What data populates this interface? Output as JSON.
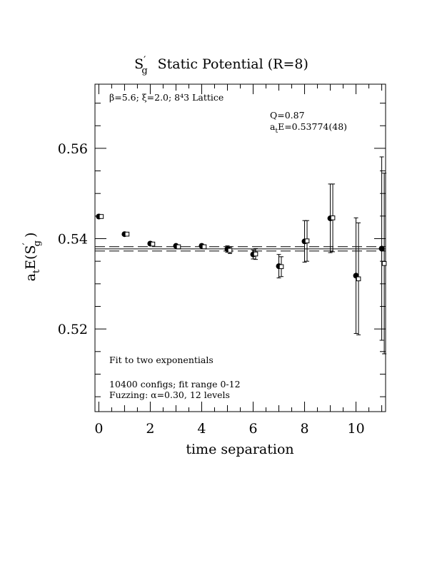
{
  "chart_data": {
    "type": "scatter",
    "title_main": "S",
    "title_main_sup": "′",
    "title_main_sub": "g",
    "title_rest": "Static Potential (R=8)",
    "xlabel": "time separation",
    "ylabel_prefix": "a",
    "ylabel_prefix_sub": "t",
    "ylabel_main": "E(S",
    "ylabel_sup": "′",
    "ylabel_sub": "g",
    "ylabel_close": ")",
    "xlim": [
      -0.15,
      11.15
    ],
    "ylim": [
      0.5017,
      0.5742
    ],
    "x_ticks": [
      0,
      2,
      4,
      6,
      8,
      10
    ],
    "x_tick_labels": [
      "0",
      "2",
      "4",
      "6",
      "8",
      "10"
    ],
    "x_minor_step": 0.5,
    "y_ticks": [
      0.52,
      0.54,
      0.56
    ],
    "y_tick_labels": [
      "0.52",
      "0.54",
      "0.56"
    ],
    "y_minor_step": 0.005,
    "grid": false,
    "annotations": {
      "lattice": "β=5.6; ξ=2.0; 8⁴3 Lattice",
      "q_value": "Q=0.87",
      "energy_prefix": "a",
      "energy_sub": "t",
      "energy_value": "E=0.53774(48)",
      "fit_note": "Fit to two exponentials",
      "configs": "10400 configs; fit range 0-12",
      "fuzzing": "Fuzzing: α=0.30, 12 levels"
    },
    "fit_band": {
      "center": 0.53774,
      "lower": 0.53726,
      "upper": 0.53822
    },
    "series": [
      {
        "marker": "filled-circle",
        "x": [
          0,
          1,
          2,
          3,
          4,
          5,
          6,
          7,
          8,
          9,
          10,
          11
        ],
        "y": [
          0.5449,
          0.541,
          0.5389,
          0.5384,
          0.5384,
          0.5377,
          0.5365,
          0.5339,
          0.5394,
          0.5445,
          0.5318,
          0.5378
        ],
        "err": [
          0.0002,
          0.0002,
          0.0002,
          0.0002,
          0.0004,
          0.0007,
          0.001,
          0.0026,
          0.0046,
          0.0076,
          0.0128,
          0.0203
        ]
      },
      {
        "marker": "open-square",
        "x": [
          0,
          1,
          2,
          3,
          4,
          5,
          6,
          7,
          8,
          9,
          10,
          11
        ],
        "y": [
          0.5449,
          0.541,
          0.5388,
          0.5382,
          0.5382,
          0.5374,
          0.5366,
          0.5338,
          0.5395,
          0.5446,
          0.5311,
          0.5345
        ],
        "err": [
          0.0002,
          0.0002,
          0.0002,
          0.0002,
          0.0004,
          0.0007,
          0.0012,
          0.0022,
          0.0045,
          0.0075,
          0.0124,
          0.02
        ]
      }
    ]
  }
}
